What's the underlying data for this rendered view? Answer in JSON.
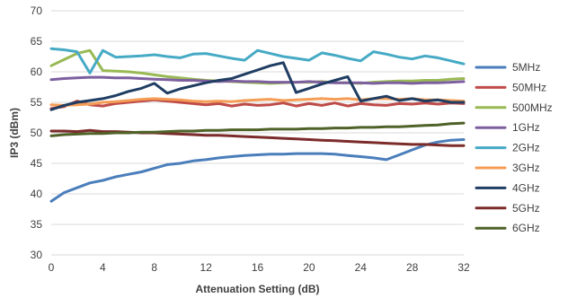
{
  "chart_data": {
    "type": "line",
    "title": "",
    "xlabel": "Attenuation Setting (dB)",
    "ylabel": "IP3 (dBm)",
    "xlim": [
      0,
      32
    ],
    "ylim": [
      30,
      70
    ],
    "xticks": [
      "0",
      "4",
      "8",
      "12",
      "16",
      "20",
      "24",
      "28",
      "32"
    ],
    "yticks": [
      "30",
      "35",
      "40",
      "45",
      "50",
      "55",
      "60",
      "65",
      "70"
    ],
    "grid": "horizontal",
    "legend_position": "right",
    "x": [
      0,
      1,
      2,
      3,
      4,
      5,
      6,
      7,
      8,
      9,
      10,
      11,
      12,
      13,
      14,
      15,
      16,
      17,
      18,
      19,
      20,
      21,
      22,
      23,
      24,
      25,
      26,
      27,
      28,
      29,
      30,
      31,
      32
    ],
    "series": [
      {
        "name": "5MHz",
        "color": "#4a7ebb",
        "values": [
          38.8,
          40.2,
          41.0,
          41.8,
          42.2,
          42.8,
          43.2,
          43.6,
          44.2,
          44.8,
          45.0,
          45.4,
          45.6,
          45.9,
          46.1,
          46.3,
          46.4,
          46.5,
          46.5,
          46.6,
          46.6,
          46.6,
          46.5,
          46.3,
          46.1,
          45.9,
          45.6,
          46.4,
          47.2,
          48.0,
          48.5,
          48.8,
          48.9
        ]
      },
      {
        "name": "50MHz",
        "color": "#be4b48",
        "values": [
          54.0,
          54.3,
          55.2,
          54.6,
          54.4,
          54.8,
          55.0,
          55.2,
          55.4,
          55.2,
          55.0,
          54.8,
          54.6,
          54.8,
          54.4,
          54.7,
          54.5,
          54.6,
          54.9,
          54.4,
          54.8,
          54.5,
          54.9,
          54.4,
          54.8,
          54.6,
          54.5,
          54.8,
          54.7,
          54.9,
          54.7,
          54.9,
          54.8
        ]
      },
      {
        "name": "500MHz",
        "color": "#98b954",
        "values": [
          61.0,
          62.0,
          63.0,
          63.5,
          60.2,
          60.1,
          60.0,
          59.8,
          59.5,
          59.2,
          59.0,
          58.8,
          58.6,
          58.5,
          58.4,
          58.3,
          58.2,
          58.1,
          58.2,
          58.3,
          58.3,
          58.4,
          58.2,
          58.2,
          58.1,
          58.3,
          58.4,
          58.5,
          58.5,
          58.6,
          58.6,
          58.8,
          58.9
        ]
      },
      {
        "name": "1GHz",
        "color": "#7d5fa0",
        "values": [
          58.7,
          58.9,
          59.0,
          59.1,
          59.1,
          59.0,
          59.0,
          58.9,
          58.8,
          58.7,
          58.6,
          58.6,
          58.5,
          58.4,
          58.5,
          58.4,
          58.4,
          58.3,
          58.3,
          58.3,
          58.4,
          58.3,
          58.2,
          58.2,
          58.2,
          58.1,
          58.2,
          58.2,
          58.1,
          58.2,
          58.2,
          58.3,
          58.4
        ]
      },
      {
        "name": "2GHz",
        "color": "#46aac5",
        "values": [
          63.8,
          63.6,
          63.3,
          59.8,
          63.5,
          62.4,
          62.5,
          62.6,
          62.8,
          62.5,
          62.3,
          62.9,
          63.0,
          62.6,
          62.2,
          61.9,
          63.5,
          63.0,
          62.5,
          62.2,
          61.9,
          63.1,
          62.7,
          62.2,
          61.8,
          63.3,
          62.9,
          62.4,
          62.1,
          62.6,
          62.3,
          61.8,
          61.3
        ]
      },
      {
        "name": "3GHz",
        "color": "#f59d56",
        "values": [
          54.6,
          54.5,
          54.6,
          54.7,
          55.0,
          55.1,
          55.3,
          55.5,
          55.6,
          55.5,
          55.4,
          55.2,
          55.1,
          55.2,
          55.1,
          55.3,
          55.4,
          55.5,
          55.3,
          55.4,
          55.5,
          55.6,
          55.5,
          55.6,
          55.4,
          55.6,
          55.6,
          55.5,
          55.6,
          55.4,
          55.4,
          55.3,
          55.2
        ]
      },
      {
        "name": "4GHz",
        "color": "#1f3d62",
        "values": [
          53.8,
          54.5,
          55.0,
          55.3,
          55.6,
          56.1,
          56.8,
          57.3,
          58.1,
          56.5,
          57.2,
          57.7,
          58.2,
          58.6,
          58.9,
          59.6,
          60.3,
          61.0,
          61.5,
          56.6,
          57.3,
          58.0,
          58.6,
          59.2,
          55.2,
          55.6,
          56.0,
          55.3,
          55.6,
          55.2,
          55.4,
          55.0,
          55.0
        ]
      },
      {
        "name": "5GHz",
        "color": "#7b2c2a",
        "values": [
          50.3,
          50.3,
          50.2,
          50.4,
          50.2,
          50.2,
          50.1,
          50.0,
          50.0,
          49.9,
          49.8,
          49.7,
          49.6,
          49.6,
          49.5,
          49.4,
          49.3,
          49.2,
          49.1,
          49.0,
          48.9,
          48.8,
          48.7,
          48.6,
          48.5,
          48.4,
          48.3,
          48.2,
          48.1,
          48.1,
          48.0,
          47.9,
          47.9
        ]
      },
      {
        "name": "6GHz",
        "color": "#4f6228",
        "values": [
          49.5,
          49.7,
          49.8,
          49.9,
          49.9,
          50.0,
          50.0,
          50.1,
          50.1,
          50.2,
          50.3,
          50.3,
          50.4,
          50.4,
          50.5,
          50.5,
          50.5,
          50.6,
          50.6,
          50.6,
          50.7,
          50.7,
          50.8,
          50.8,
          50.9,
          50.9,
          51.0,
          51.0,
          51.1,
          51.2,
          51.3,
          51.5,
          51.6
        ]
      }
    ]
  }
}
